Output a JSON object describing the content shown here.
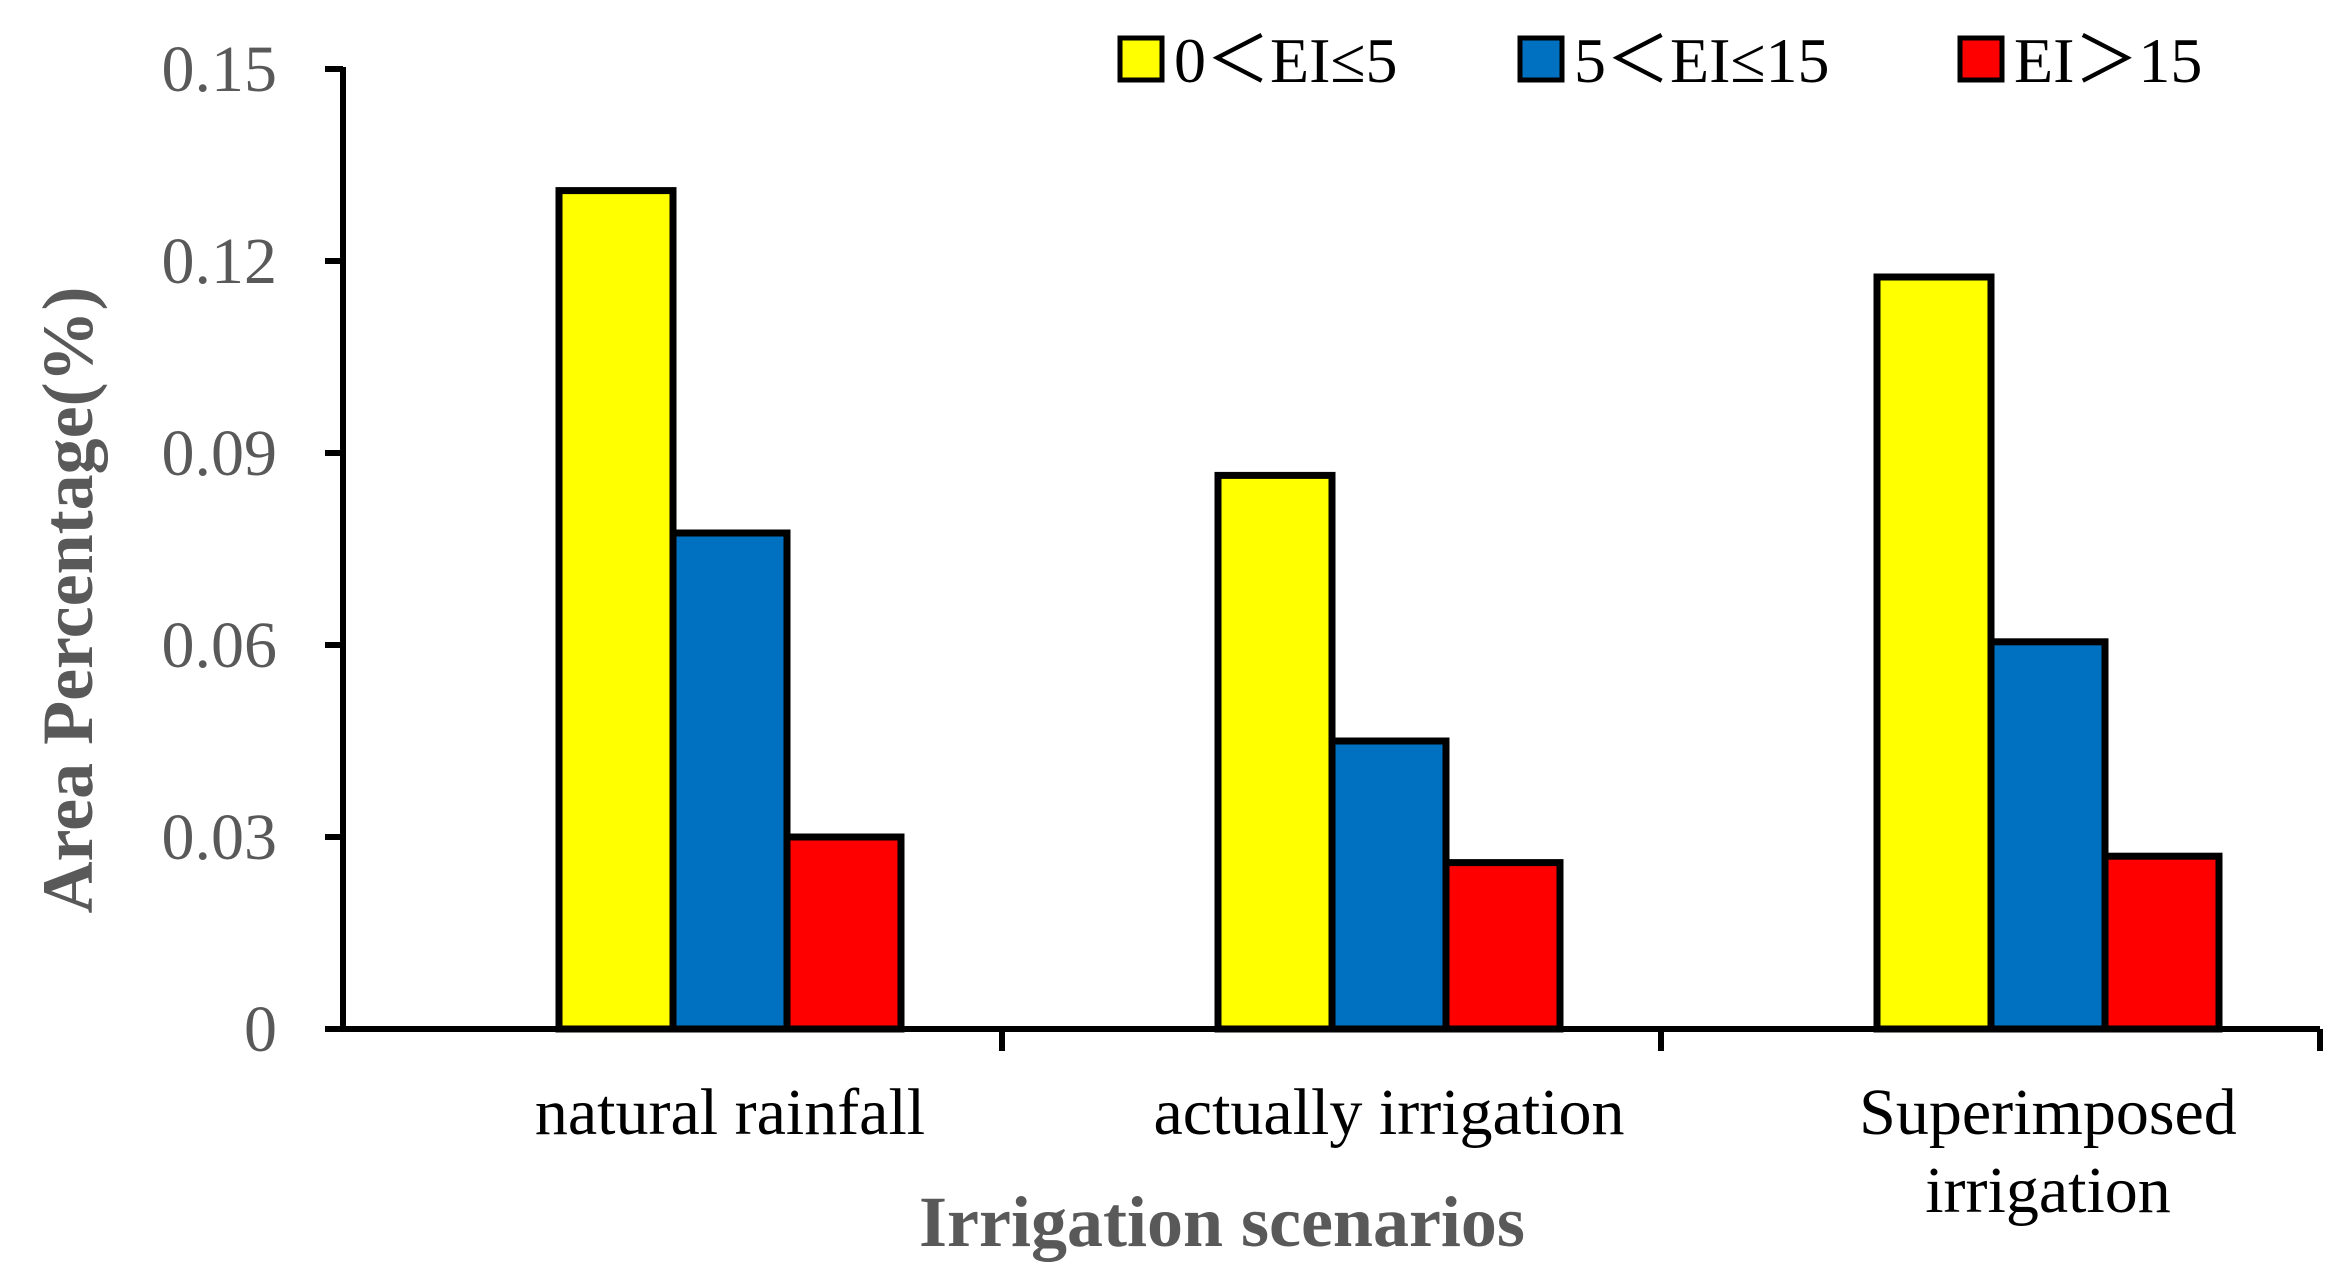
{
  "chart_data": {
    "type": "bar",
    "title": "",
    "xlabel": "Irrigation scenarios",
    "ylabel": "Area Percentage(%)",
    "ylim": [
      0,
      0.15
    ],
    "yticks": [
      "0",
      "0.03",
      "0.06",
      "0.09",
      "0.12",
      "0.15"
    ],
    "grid": false,
    "legend_position": "top-right",
    "categories": [
      [
        "natural rainfall"
      ],
      [
        "actually irrigation"
      ],
      [
        "Superimposed",
        "irrigation"
      ]
    ],
    "series": [
      {
        "name": "0＜EI≤5",
        "color": "#FFFF00",
        "values": [
          0.131,
          0.0865,
          0.1175
        ]
      },
      {
        "name": "5＜EI≤15",
        "color": "#0070C0",
        "values": [
          0.0775,
          0.045,
          0.0605
        ]
      },
      {
        "name": "EI＞15",
        "color": "#FF0000",
        "values": [
          0.03,
          0.026,
          0.027
        ]
      }
    ]
  }
}
